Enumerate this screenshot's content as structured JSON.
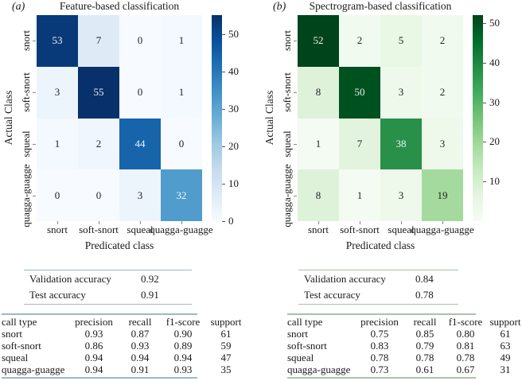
{
  "chart_data": [
    {
      "type": "heatmap",
      "letter": "(a)",
      "title": "Feature-based classification",
      "xlabel": "Predicated class",
      "ylabel": "Actual Class",
      "categories": [
        "snort",
        "soft-snort",
        "squeal",
        "quagga-guagge"
      ],
      "matrix": [
        [
          53,
          7,
          0,
          1
        ],
        [
          3,
          55,
          0,
          1
        ],
        [
          1,
          2,
          44,
          0
        ],
        [
          0,
          0,
          3,
          32
        ]
      ],
      "vmin": 0,
      "vmax": 55,
      "colormap": "Blues",
      "colorbar_ticks": [
        0,
        10,
        20,
        30,
        40,
        50
      ],
      "rule_color": "#9bb8cc",
      "accuracy_table": {
        "rows": [
          {
            "label": "Validation accuracy",
            "value": "0.92"
          },
          {
            "label": "Test accuracy",
            "value": "0.91"
          }
        ]
      },
      "metrics_table": {
        "headers": [
          "call type",
          "precision",
          "recall",
          "f1-score",
          "support"
        ],
        "rows": [
          [
            "snort",
            "0.93",
            "0.87",
            "0.90",
            "61"
          ],
          [
            "soft-snort",
            "0.86",
            "0.93",
            "0.89",
            "59"
          ],
          [
            "squeal",
            "0.94",
            "0.94",
            "0.94",
            "47"
          ],
          [
            "quagga-guagge",
            "0.94",
            "0.91",
            "0.93",
            "35"
          ]
        ]
      }
    },
    {
      "type": "heatmap",
      "letter": "(b)",
      "title": "Spectrogram-based classification",
      "xlabel": "Predicated class",
      "ylabel": "Actual Class",
      "categories": [
        "snort",
        "soft-snort",
        "squeal",
        "quagga-guagge"
      ],
      "matrix": [
        [
          52,
          2,
          5,
          2
        ],
        [
          8,
          50,
          3,
          2
        ],
        [
          1,
          7,
          38,
          3
        ],
        [
          8,
          1,
          3,
          19
        ]
      ],
      "vmin": 0,
      "vmax": 52,
      "colormap": "Greens",
      "colorbar_ticks": [
        10,
        20,
        30,
        40,
        50
      ],
      "rule_color": "#a6c3a9",
      "accuracy_table": {
        "rows": [
          {
            "label": "Validation accuracy",
            "value": "0.84"
          },
          {
            "label": "Test accuracy",
            "value": "0.78"
          }
        ]
      },
      "metrics_table": {
        "headers": [
          "call type",
          "precision",
          "recall",
          "f1-score",
          "support"
        ],
        "rows": [
          [
            "snort",
            "0.75",
            "0.85",
            "0.80",
            "61"
          ],
          [
            "soft-snort",
            "0.83",
            "0.79",
            "0.81",
            "63"
          ],
          [
            "squeal",
            "0.78",
            "0.78",
            "0.78",
            "49"
          ],
          [
            "quagga-guagge",
            "0.73",
            "0.61",
            "0.67",
            "31"
          ]
        ]
      }
    }
  ]
}
